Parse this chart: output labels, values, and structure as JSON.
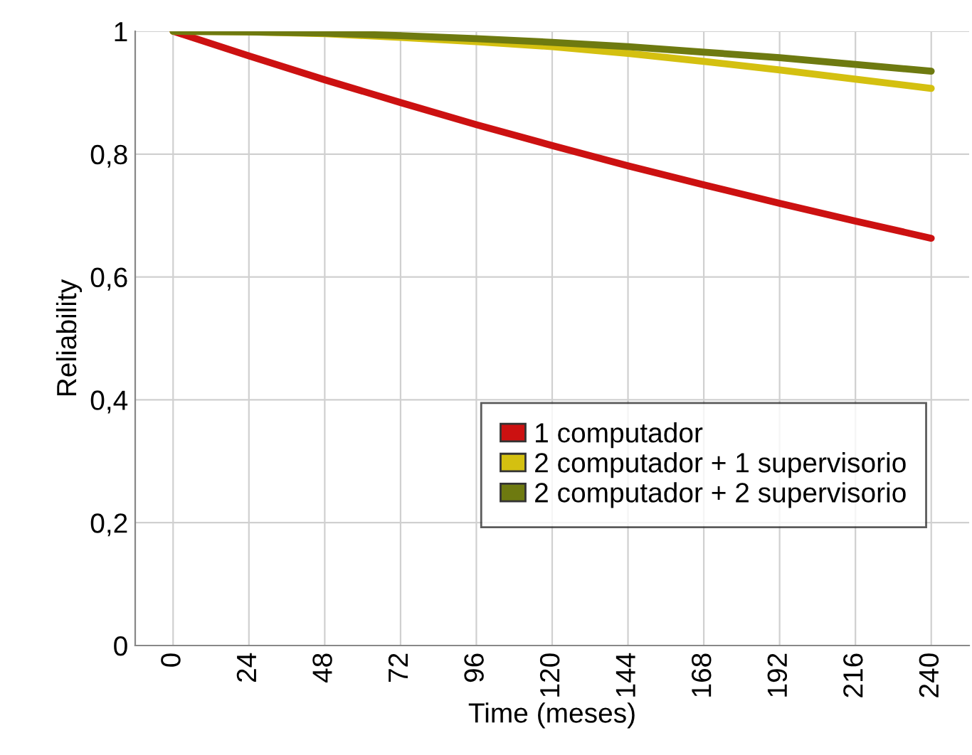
{
  "chart_data": {
    "type": "line",
    "xlabel": "Time (meses)",
    "ylabel": "Reliability",
    "x": [
      0,
      24,
      48,
      72,
      96,
      120,
      144,
      168,
      192,
      216,
      240
    ],
    "series": [
      {
        "name": "1 computador",
        "color": "#cc1111",
        "values": [
          1,
          0.96,
          0.921,
          0.884,
          0.848,
          0.814,
          0.781,
          0.75,
          0.72,
          0.691,
          0.663
        ]
      },
      {
        "name": "2 computador + 1 supervisorio",
        "color": "#d4c010",
        "values": [
          1,
          0.999,
          0.996,
          0.99,
          0.983,
          0.975,
          0.964,
          0.951,
          0.937,
          0.922,
          0.907
        ]
      },
      {
        "name": "2 computador + 2 supervisorio",
        "color": "#6e7a10",
        "values": [
          1,
          0.999,
          0.997,
          0.993,
          0.988,
          0.982,
          0.975,
          0.966,
          0.957,
          0.946,
          0.935
        ]
      }
    ],
    "xlim": [
      -12,
      252
    ],
    "xticks": [
      0,
      24,
      48,
      72,
      96,
      120,
      144,
      168,
      192,
      216,
      240
    ],
    "ylim": [
      0,
      1
    ],
    "yticks": [
      {
        "value": 0,
        "label": "0"
      },
      {
        "value": 0.2,
        "label": "0,2"
      },
      {
        "value": 0.4,
        "label": "0,4"
      },
      {
        "value": 0.6,
        "label": "0,6"
      },
      {
        "value": 0.8,
        "label": "0,8"
      },
      {
        "value": 1,
        "label": "1"
      }
    ],
    "grid": true,
    "legend": "bottom right",
    "marker": "none",
    "line_style": "solid"
  }
}
